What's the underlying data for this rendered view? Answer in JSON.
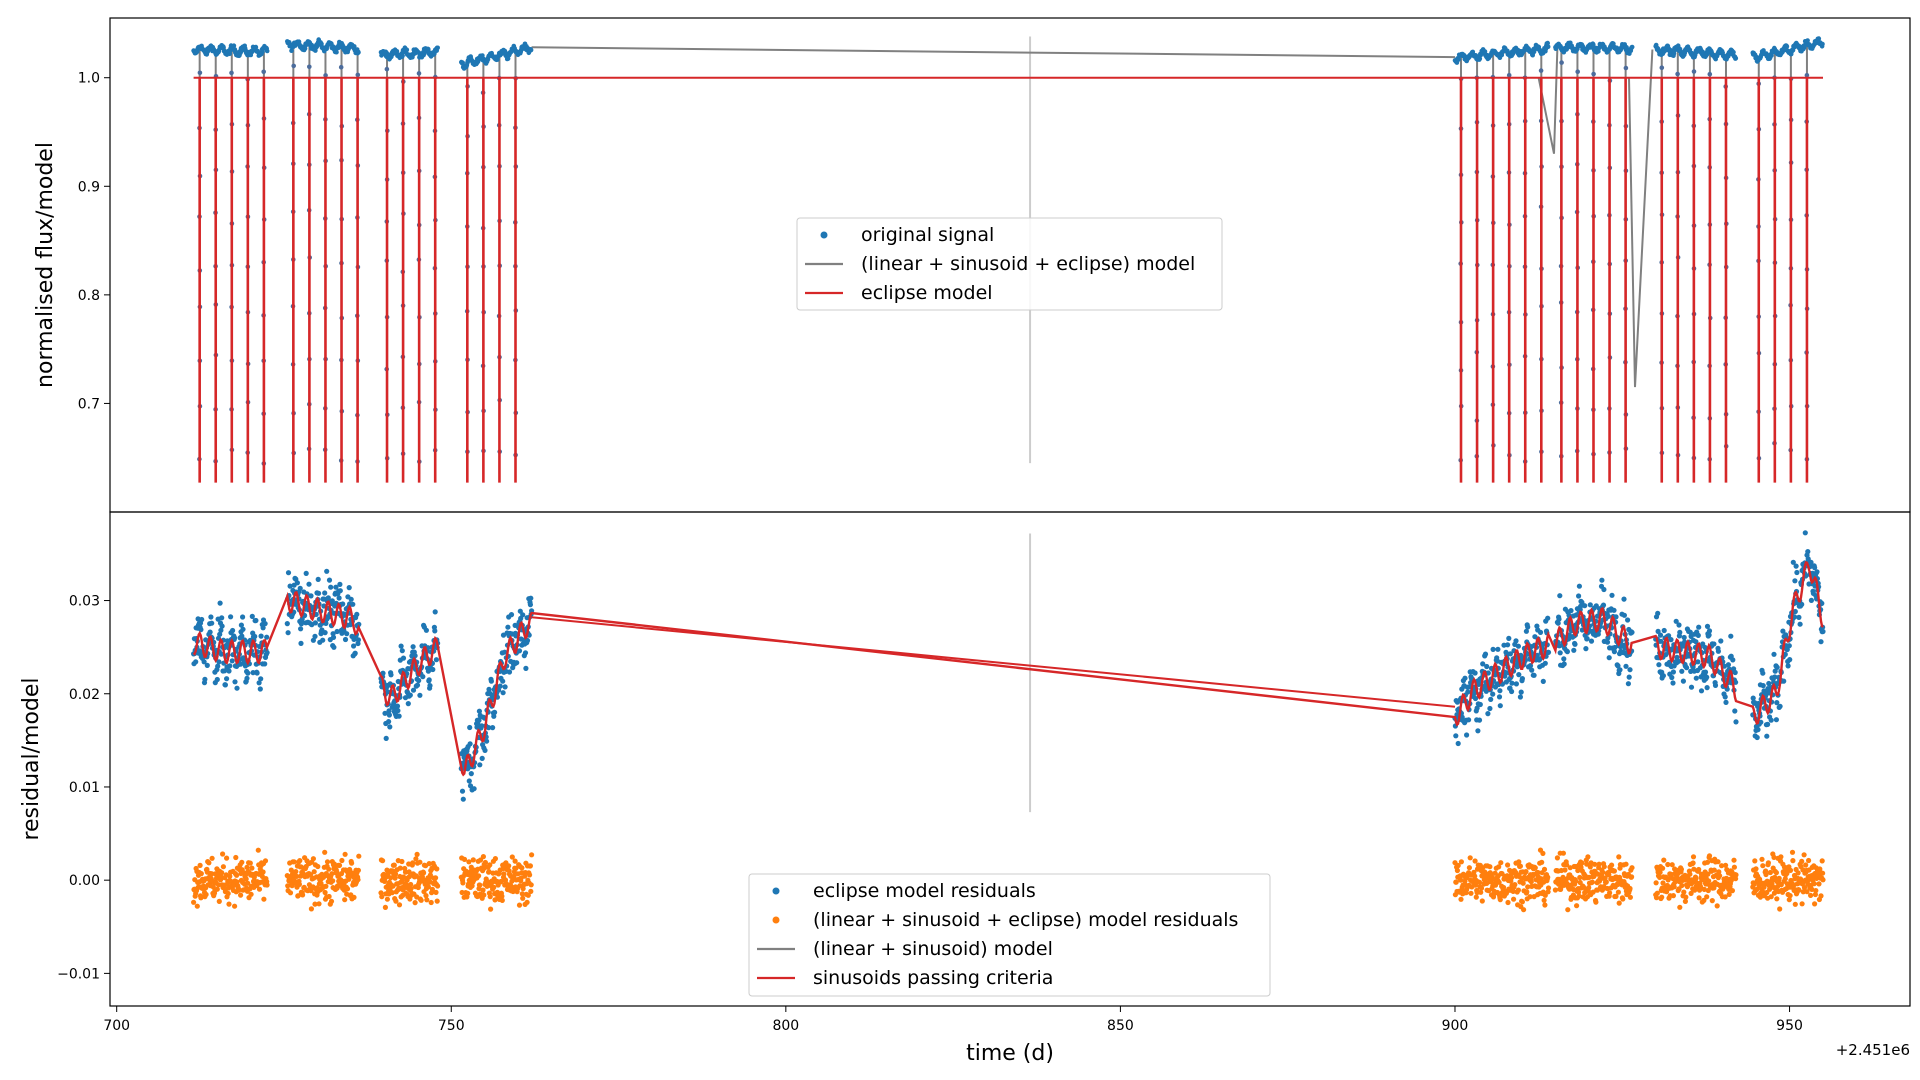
{
  "figure": {
    "xlabel": "time (d)",
    "x_offset_text": "+2.451e6",
    "xlim": [
      699,
      968
    ],
    "xticks": [
      700,
      750,
      800,
      850,
      900,
      950
    ],
    "xtick_labels": [
      "700",
      "750",
      "800",
      "850",
      "900",
      "950"
    ]
  },
  "chart_data": [
    {
      "type": "scatter",
      "ylabel": "normalised flux/model",
      "ylim": [
        0.6,
        1.055
      ],
      "yticks": [
        0.7,
        0.8,
        0.9,
        1.0
      ],
      "ytick_labels": [
        "0.7",
        "0.8",
        "0.9",
        "1.0"
      ],
      "legend_location": "center",
      "legend": [
        "original signal",
        "(linear + sinusoid + eclipse) model",
        "eclipse model"
      ],
      "eclipse_period_d": 2.4,
      "eclipse_min_flux": 0.63,
      "out_of_eclipse_flux": 1.0,
      "vertical_marker_x": 836.5,
      "vertical_marker_y": [
        0.645,
        1.038
      ],
      "data_segments": [
        [
          711.5,
          722.5
        ],
        [
          725.5,
          736.2
        ],
        [
          739.5,
          748.0
        ],
        [
          751.5,
          762.0
        ],
        [
          900.0,
          914.0
        ],
        [
          915.0,
          926.5
        ],
        [
          930.0,
          942.0
        ],
        [
          944.5,
          955.0
        ]
      ],
      "series": [
        {
          "name": "original signal",
          "color": "#1f77b4",
          "marker": "dot",
          "baseline_levels_x": [
            711.5,
            722.5,
            725.5,
            736.0,
            740.0,
            748.0,
            752.0,
            762.0,
            900.0,
            914.0,
            916.0,
            926.0,
            930.0,
            942.0,
            945.0,
            955.0
          ],
          "baseline_levels_y": [
            1.026,
            1.024,
            1.031,
            1.027,
            1.021,
            1.024,
            1.013,
            1.028,
            1.018,
            1.027,
            1.028,
            1.027,
            1.026,
            1.021,
            1.019,
            1.033
          ]
        },
        {
          "name": "(linear + sinusoid + eclipse) model",
          "color": "#808080"
        },
        {
          "name": "eclipse model",
          "color": "#d62728"
        }
      ],
      "model_bridges": [
        {
          "x": [
            762.0,
            900.0
          ],
          "y": [
            1.028,
            1.019
          ]
        },
        {
          "x": [
            912.5,
            914.8,
            915.3
          ],
          "y": [
            1.0,
            0.93,
            1.028
          ]
        },
        {
          "x": [
            926.0,
            926.9,
            929.5
          ],
          "y": [
            1.0,
            0.715,
            1.026
          ]
        }
      ]
    },
    {
      "type": "scatter",
      "ylabel": "residual/model",
      "ylim": [
        -0.0135,
        0.0395
      ],
      "yticks": [
        -0.01,
        0.0,
        0.01,
        0.02,
        0.03
      ],
      "ytick_labels": [
        "−0.01",
        "0.00",
        "0.01",
        "0.02",
        "0.03"
      ],
      "legend_location": "lower center",
      "legend": [
        "eclipse model residuals",
        "(linear + sinusoid + eclipse) model residuals",
        "(linear + sinusoid) model",
        "sinusoids passing criteria"
      ],
      "vertical_marker_x": 836.5,
      "vertical_marker_y": [
        0.0073,
        0.0372
      ],
      "series": [
        {
          "name": "eclipse model residuals",
          "color": "#1f77b4",
          "spread": 0.0022,
          "trend_x": [
            711.5,
            716.0,
            722.0,
            725.5,
            730.0,
            735.5,
            738.0,
            741.0,
            745.5,
            748.0,
            752.0,
            755.0,
            758.0,
            761.5,
            900.0,
            903.0,
            907.0,
            911.5,
            915.0,
            918.0,
            922.0,
            926.0,
            930.0,
            934.0,
            938.0,
            941.5,
            944.5,
            948.0,
            950.5,
            953.0,
            955.0
          ],
          "trend_y": [
            0.0255,
            0.0245,
            0.0245,
            0.03,
            0.029,
            0.028,
            0.022,
            0.0195,
            0.0235,
            0.025,
            0.0115,
            0.0165,
            0.024,
            0.0275,
            0.0175,
            0.0205,
            0.0225,
            0.0245,
            0.0255,
            0.0275,
            0.028,
            0.0255,
            0.025,
            0.0245,
            0.024,
            0.021,
            0.0175,
            0.02,
            0.029,
            0.034,
            0.028
          ]
        },
        {
          "name": "(linear + sinusoid + eclipse) model residuals",
          "color": "#ff7f0e",
          "spread": 0.0016,
          "center": 0.0
        },
        {
          "name": "(linear + sinusoid) model",
          "color": "#808080"
        },
        {
          "name": "sinusoids passing criteria",
          "color": "#d62728",
          "wiggle_amplitude": 0.0012,
          "wiggle_period_d": 1.6
        }
      ],
      "model_bridges": [
        {
          "x": [
            762.0,
            900.0
          ],
          "y": [
            0.0282,
            0.0186
          ]
        }
      ]
    }
  ]
}
